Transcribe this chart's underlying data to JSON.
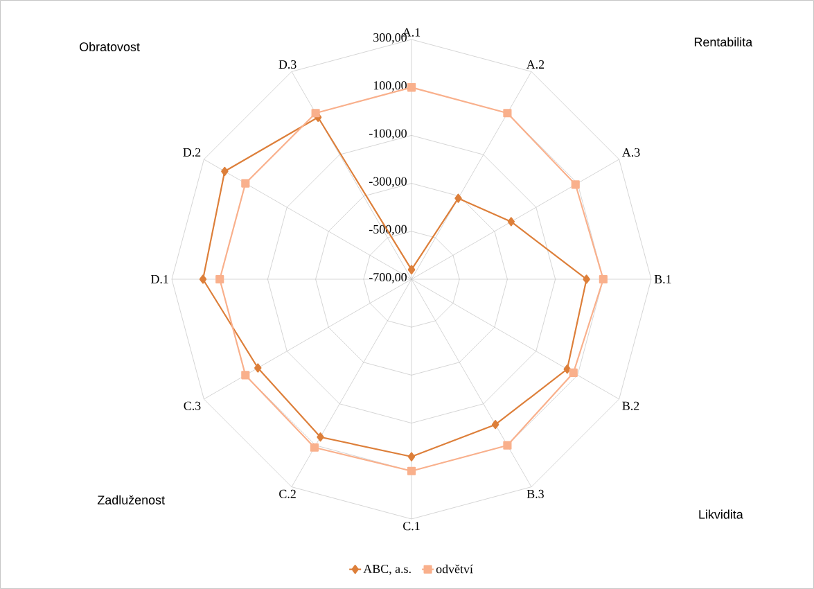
{
  "chart_data": {
    "type": "radar",
    "categories": [
      "A.1",
      "A.2",
      "A.3",
      "B.1",
      "B.2",
      "B.3",
      "C.1",
      "C.2",
      "C.3",
      "D.1",
      "D.2",
      "D.3"
    ],
    "series": [
      {
        "name": "ABC, a.s.",
        "color": "#dd7f3a",
        "marker": "diamond",
        "values": [
          -660,
          -310,
          -220,
          30,
          50,
          0,
          40,
          60,
          40,
          170,
          200,
          80
        ]
      },
      {
        "name": "odvětví",
        "color": "#f9b08c",
        "marker": "square",
        "values": [
          100,
          100,
          90,
          100,
          80,
          100,
          100,
          110,
          100,
          100,
          100,
          100
        ]
      }
    ],
    "ylim": [
      -700,
      300
    ],
    "yticks": [
      {
        "value": -700,
        "label": "-700,00"
      },
      {
        "value": -500,
        "label": "-500,00"
      },
      {
        "value": -300,
        "label": "-300,00"
      },
      {
        "value": -100,
        "label": "-100,00"
      },
      {
        "value": 100,
        "label": "100,00"
      },
      {
        "value": 300,
        "label": "300,00"
      }
    ],
    "grid": true,
    "legend": "bottom",
    "annotations": [
      "Obratovost",
      "Rentabilita",
      "Zadluženost",
      "Likvidita"
    ]
  }
}
